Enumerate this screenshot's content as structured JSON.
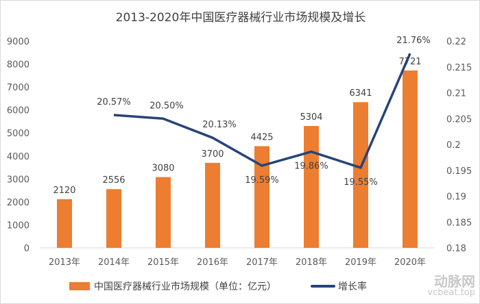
{
  "chart_data": {
    "type": "bar+line",
    "title": "2013-2020年中国医疗器械行业市场规模及增长",
    "categories": [
      "2013年",
      "2014年",
      "2015年",
      "2016年",
      "2017年",
      "2018年",
      "2019年",
      "2020年"
    ],
    "series": [
      {
        "name": "中国医疗器械行业市场规模（单位：亿元）",
        "type": "bar",
        "axis": "left",
        "color": "#ED7D31",
        "values": [
          2120,
          2556,
          3080,
          3700,
          4425,
          5304,
          6341,
          7721
        ]
      },
      {
        "name": "增长率",
        "type": "line",
        "axis": "right",
        "color": "#264478",
        "values": [
          null,
          0.2057,
          0.205,
          0.2013,
          0.1959,
          0.1986,
          0.1955,
          0.2176
        ],
        "labels": [
          "",
          "20.57%",
          "20.50%",
          "20.13%",
          "19.59%",
          "19.86%",
          "19.55%",
          "21.76%"
        ]
      }
    ],
    "ylim": [
      0,
      9000
    ],
    "yticks": [
      "0",
      "1000",
      "2000",
      "3000",
      "4000",
      "5000",
      "6000",
      "7000",
      "8000",
      "9000"
    ],
    "y2lim": [
      0.18,
      0.22
    ],
    "y2ticks": [
      "0.18",
      "0.185",
      "0.19",
      "0.195",
      "0.2",
      "0.205",
      "0.21",
      "0.215",
      "0.22"
    ],
    "grid": false,
    "legend": "bottom"
  },
  "watermark": {
    "cn": "动脉网",
    "en": "vcbeat.top"
  }
}
